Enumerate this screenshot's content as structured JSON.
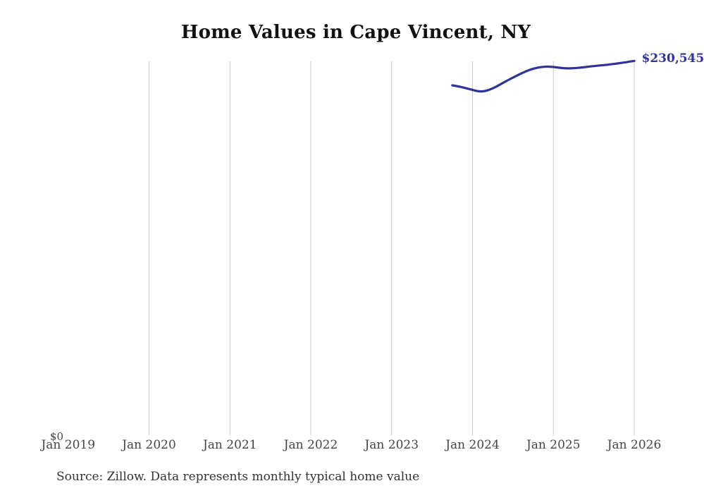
{
  "title": "Home Values in Cape Vincent, NY",
  "source_note": "Source: Zillow. Data represents monthly typical home value",
  "end_label": "$230,545",
  "y_axis": {
    "zero_label": "$0"
  },
  "colors": {
    "line": "#32329c",
    "end_label": "#32329c",
    "grid": "#c9c9c9",
    "title": "#111111",
    "tick": "#454545",
    "source": "#333333",
    "background": "#ffffff"
  },
  "chart_data": {
    "type": "line",
    "title": "Home Values in Cape Vincent, NY",
    "xlabel": "",
    "ylabel": "",
    "ylim": [
      0,
      230545
    ],
    "grid": "vertical-gridlines-only",
    "legend": "none",
    "x_tick_labels": [
      "Jan 2019",
      "Jan 2020",
      "Jan 2021",
      "Jan 2022",
      "Jan 2023",
      "Jan 2024",
      "Jan 2025",
      "Jan 2026"
    ],
    "gridline_ticks": [
      "Jan 2020",
      "Jan 2021",
      "Jan 2022",
      "Jan 2023",
      "Jan 2024",
      "Jan 2025",
      "Jan 2026"
    ],
    "last_point_label": "$230,545",
    "series": [
      {
        "name": "Monthly typical home value",
        "months": [
          "2023-10",
          "2023-11",
          "2023-12",
          "2024-01",
          "2024-02",
          "2024-03",
          "2024-04",
          "2024-05",
          "2024-06",
          "2024-07",
          "2024-08",
          "2024-09",
          "2024-10",
          "2024-11",
          "2024-12",
          "2025-01",
          "2025-02",
          "2025-03",
          "2025-04",
          "2025-05",
          "2025-06",
          "2025-07",
          "2025-08",
          "2025-09",
          "2025-10",
          "2025-11",
          "2025-12",
          "2026-01"
        ],
        "values": [
          215500,
          214800,
          213800,
          212700,
          211600,
          212000,
          213600,
          215800,
          218100,
          220300,
          222400,
          224300,
          225800,
          226700,
          227100,
          226900,
          226300,
          225950,
          226050,
          226400,
          226900,
          227400,
          227800,
          228200,
          228700,
          229300,
          229900,
          230545
        ]
      }
    ]
  }
}
